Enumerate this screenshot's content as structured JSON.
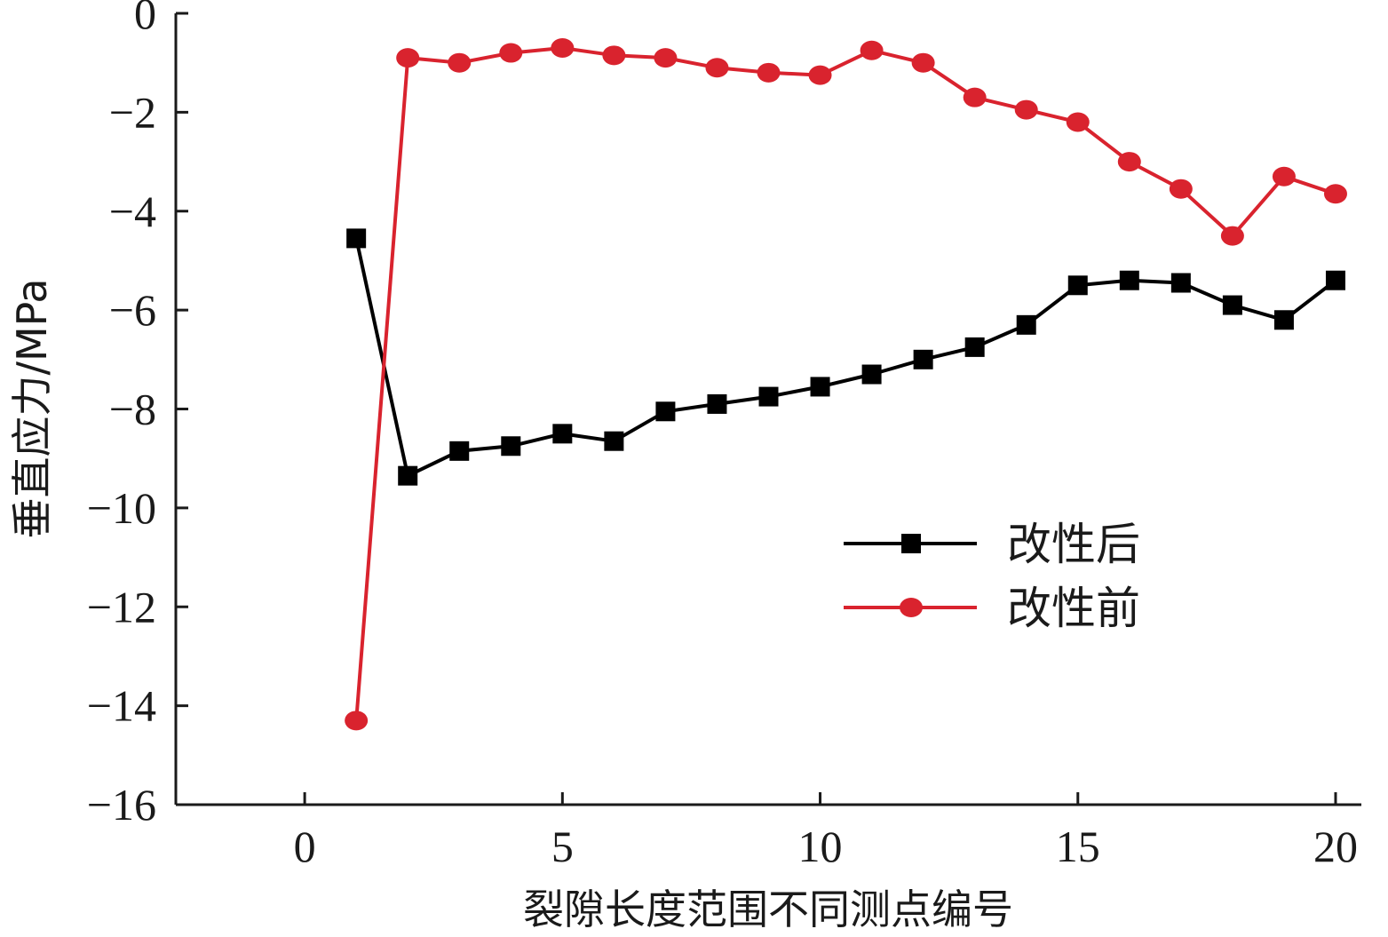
{
  "chart_data": {
    "type": "line",
    "xlabel": "裂隙长度范围不同测点编号",
    "ylabel": "垂直应力/MPa",
    "xlim": [
      -2.5,
      20.5
    ],
    "ylim": [
      -16,
      0
    ],
    "xticks": [
      0,
      5,
      10,
      15,
      20
    ],
    "yticks": [
      0,
      -2,
      -4,
      -6,
      -8,
      -10,
      -12,
      -14,
      -16
    ],
    "xtick_labels": [
      "0",
      "5",
      "10",
      "15",
      "20"
    ],
    "ytick_labels": [
      "0",
      "−2",
      "−4",
      "−6",
      "−8",
      "−10",
      "−12",
      "−14",
      "−16"
    ],
    "grid": false,
    "legend_position": "lower-right",
    "x": [
      1,
      2,
      3,
      4,
      5,
      6,
      7,
      8,
      9,
      10,
      11,
      12,
      13,
      14,
      15,
      16,
      17,
      18,
      19,
      20
    ],
    "series": [
      {
        "name": "改性后",
        "color": "#000000",
        "marker": "square",
        "values": [
          -4.55,
          -9.35,
          -8.85,
          -8.75,
          -8.5,
          -8.65,
          -8.05,
          -7.9,
          -7.75,
          -7.55,
          -7.3,
          -7.0,
          -6.75,
          -6.3,
          -5.5,
          -5.4,
          -5.45,
          -5.9,
          -6.2,
          -5.4
        ]
      },
      {
        "name": "改性前",
        "color": "#d9232e",
        "marker": "circle",
        "values": [
          -14.3,
          -0.9,
          -1.0,
          -0.8,
          -0.7,
          -0.85,
          -0.9,
          -1.1,
          -1.2,
          -1.25,
          -0.75,
          -1.0,
          -1.7,
          -1.95,
          -2.2,
          -3.0,
          -3.55,
          -4.5,
          -3.3,
          -3.65
        ]
      }
    ]
  }
}
